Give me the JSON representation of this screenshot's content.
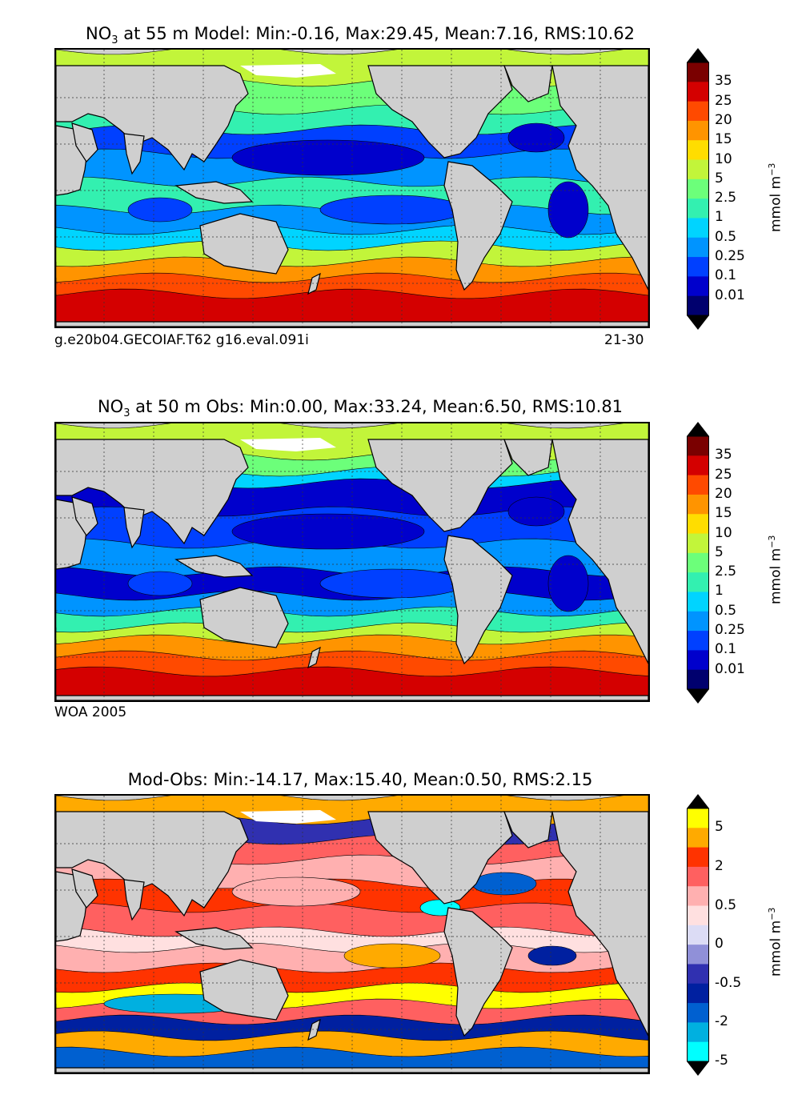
{
  "panels": [
    {
      "title_main": "NO",
      "title_sub": "3",
      "title_rest": " at 55 m Model: Min:-0.16, Max:29.45, Mean:7.16, RMS:10.62",
      "footnote_left": "g.e20b04.GECOIAF.T62 g16.eval.091i",
      "footnote_right": "21-30",
      "colorbar": {
        "ticks": [
          "35",
          "25",
          "20",
          "15",
          "10",
          "5",
          "2.5",
          "1",
          "0.5",
          "0.25",
          "0.1",
          "0.01"
        ],
        "colors": [
          "#7a0000",
          "#d40000",
          "#ff4a00",
          "#ff9400",
          "#ffdd00",
          "#c2f53a",
          "#6cff7a",
          "#33f0b0",
          "#00d4ff",
          "#0094ff",
          "#0040ff",
          "#0000cc",
          "#00006e"
        ],
        "unit": "mmol m",
        "unit_sup": "−3"
      },
      "field": "model"
    },
    {
      "title_main": "NO",
      "title_sub": "3",
      "title_rest": " at 50 m Obs: Min:0.00, Max:33.24, Mean:6.50, RMS:10.81",
      "footnote_left": "WOA 2005",
      "footnote_right": "",
      "colorbar": {
        "ticks": [
          "35",
          "25",
          "20",
          "15",
          "10",
          "5",
          "2.5",
          "1",
          "0.5",
          "0.25",
          "0.1",
          "0.01"
        ],
        "colors": [
          "#7a0000",
          "#d40000",
          "#ff4a00",
          "#ff9400",
          "#ffdd00",
          "#c2f53a",
          "#6cff7a",
          "#33f0b0",
          "#00d4ff",
          "#0094ff",
          "#0040ff",
          "#0000cc",
          "#00006e"
        ],
        "unit": "mmol m",
        "unit_sup": "−3"
      },
      "field": "obs"
    },
    {
      "title_main": "Mod-Obs: Min:-14.17, Max:15.40, Mean:0.50, RMS:2.15",
      "title_sub": "",
      "title_rest": "",
      "footnote_left": "",
      "footnote_right": "",
      "colorbar": {
        "ticks": [
          "5",
          "2",
          "0.5",
          "0",
          "-0.5",
          "-2",
          "-5"
        ],
        "colors": [
          "#ffff00",
          "#ffaa00",
          "#ff3300",
          "#ff6060",
          "#ffb0b0",
          "#ffe0e0",
          "#dcdcf5",
          "#9090d8",
          "#3030b0",
          "#0020a0",
          "#0060d0",
          "#00b0e0",
          "#00ffff"
        ],
        "unit": "mmol m",
        "unit_sup": "−3"
      },
      "field": "diff"
    }
  ]
}
